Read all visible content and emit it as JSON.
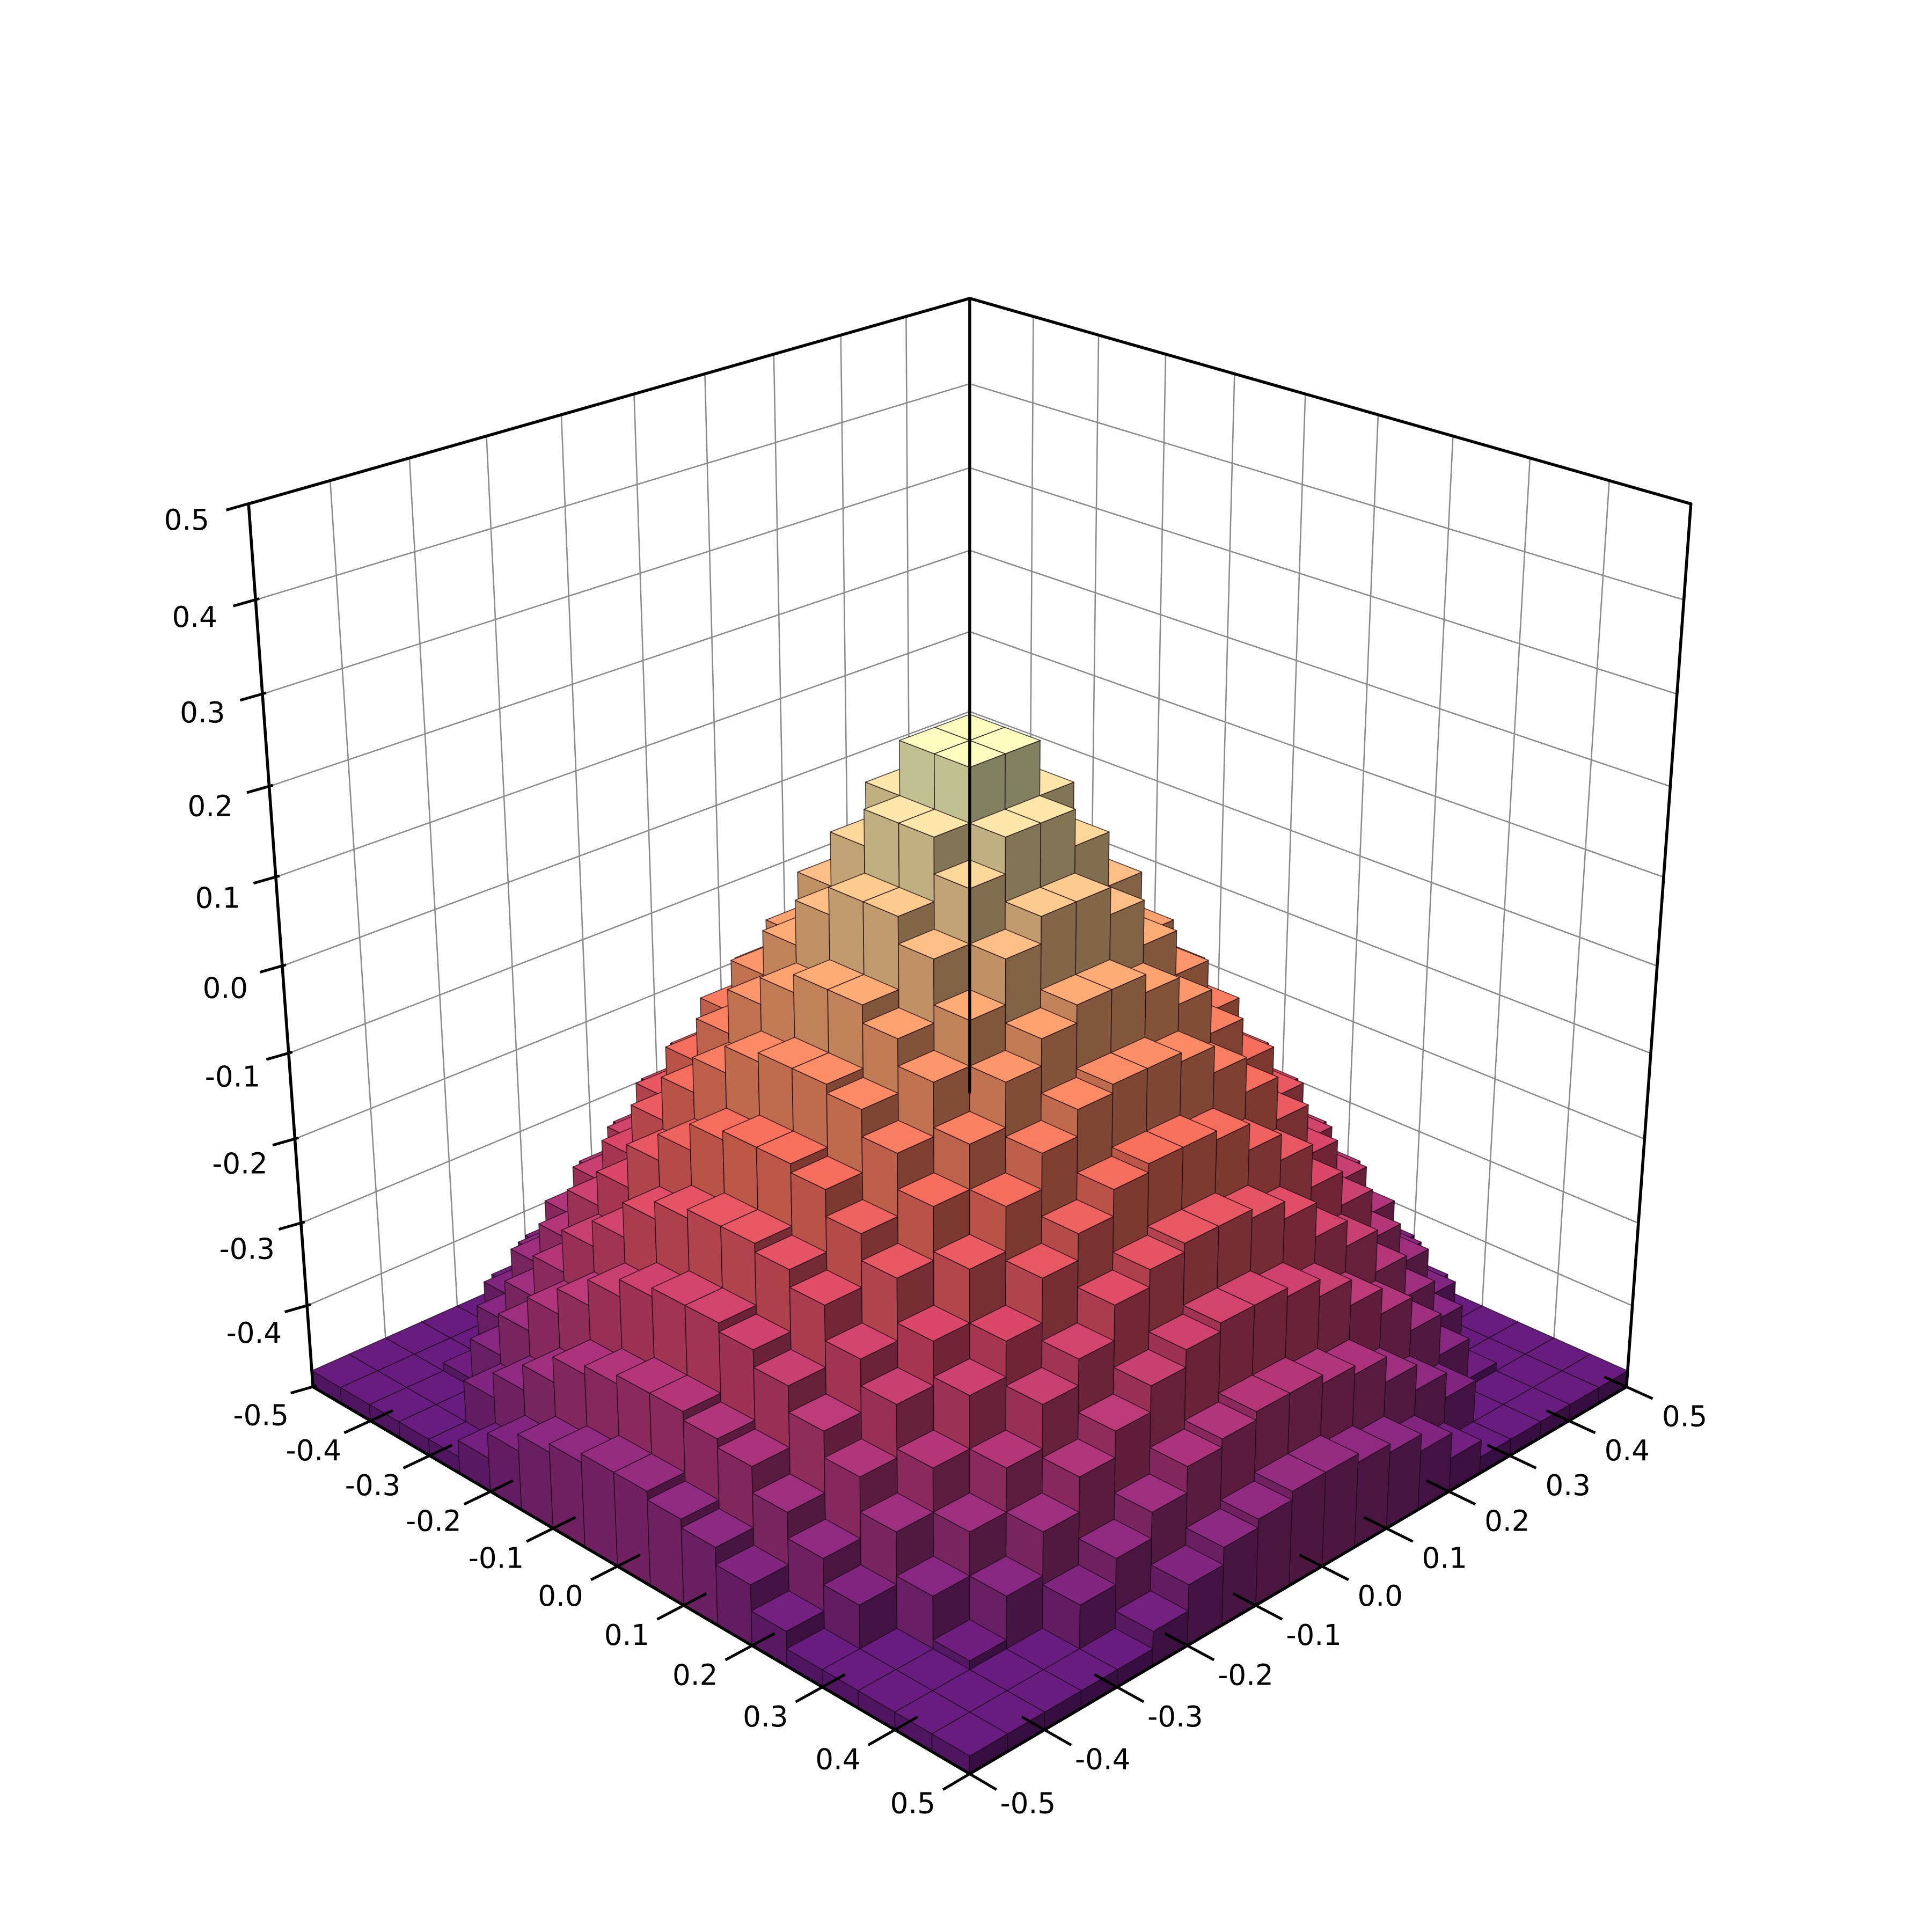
{
  "chart_data": {
    "type": "bar3d",
    "colormap": "magma",
    "grid": true,
    "pane_color": "#ffffff",
    "grid_color": "#8a8a8a",
    "edge_color": "#1a0a14",
    "xlim": [
      -0.5,
      0.5
    ],
    "ylim": [
      -0.5,
      0.5
    ],
    "zlim": [
      -0.5,
      0.5
    ],
    "base": -0.5,
    "cell_size": 0.05,
    "x_tick_labels": [
      "-0.4",
      "-0.3",
      "-0.2",
      "-0.1",
      "0.0",
      "0.1",
      "0.2",
      "0.3",
      "0.4",
      "0.5"
    ],
    "x_tick_values": [
      -0.4,
      -0.3,
      -0.2,
      -0.1,
      0.0,
      0.1,
      0.2,
      0.3,
      0.4,
      0.5
    ],
    "y_tick_labels": [
      "-0.5",
      "-0.4",
      "-0.3",
      "-0.2",
      "-0.1",
      "0.0",
      "0.1",
      "0.2",
      "0.3",
      "0.4",
      "0.5"
    ],
    "y_tick_values": [
      -0.5,
      -0.4,
      -0.3,
      -0.2,
      -0.1,
      0.0,
      0.1,
      0.2,
      0.3,
      0.4,
      0.5
    ],
    "z_tick_labels": [
      "-0.5",
      "-0.4",
      "-0.3",
      "-0.2",
      "-0.1",
      "0.0",
      "0.1",
      "0.2",
      "0.3",
      "0.4",
      "0.5"
    ],
    "z_tick_values": [
      -0.5,
      -0.4,
      -0.3,
      -0.2,
      -0.1,
      0.0,
      0.1,
      0.2,
      0.3,
      0.4,
      0.5
    ],
    "bar_heights": [
      [
        0.02,
        0.02,
        0.02,
        0.02,
        0.02,
        0.04,
        0.07,
        0.09,
        0.1,
        0.11,
        0.11,
        0.1,
        0.09,
        0.07,
        0.04,
        0.02,
        0.02,
        0.02,
        0.02,
        0.02
      ],
      [
        0.02,
        0.02,
        0.02,
        0.02,
        0.07,
        0.1,
        0.13,
        0.16,
        0.17,
        0.18,
        0.18,
        0.17,
        0.16,
        0.13,
        0.1,
        0.07,
        0.02,
        0.02,
        0.02,
        0.02
      ],
      [
        0.02,
        0.02,
        0.03,
        0.08,
        0.13,
        0.17,
        0.2,
        0.23,
        0.25,
        0.26,
        0.26,
        0.25,
        0.23,
        0.2,
        0.17,
        0.13,
        0.08,
        0.03,
        0.02,
        0.02
      ],
      [
        0.02,
        0.02,
        0.08,
        0.13,
        0.18,
        0.23,
        0.26,
        0.3,
        0.32,
        0.33,
        0.33,
        0.32,
        0.3,
        0.26,
        0.23,
        0.18,
        0.13,
        0.08,
        0.02,
        0.02
      ],
      [
        0.02,
        0.07,
        0.13,
        0.18,
        0.24,
        0.28,
        0.33,
        0.36,
        0.39,
        0.4,
        0.4,
        0.39,
        0.36,
        0.33,
        0.28,
        0.24,
        0.18,
        0.13,
        0.07,
        0.02
      ],
      [
        0.04,
        0.1,
        0.17,
        0.23,
        0.28,
        0.34,
        0.39,
        0.43,
        0.46,
        0.47,
        0.47,
        0.46,
        0.43,
        0.39,
        0.34,
        0.28,
        0.23,
        0.17,
        0.1,
        0.04
      ],
      [
        0.07,
        0.13,
        0.2,
        0.26,
        0.33,
        0.39,
        0.44,
        0.49,
        0.52,
        0.54,
        0.54,
        0.52,
        0.49,
        0.44,
        0.39,
        0.33,
        0.26,
        0.2,
        0.13,
        0.07
      ],
      [
        0.09,
        0.16,
        0.23,
        0.3,
        0.36,
        0.43,
        0.49,
        0.54,
        0.59,
        0.62,
        0.62,
        0.59,
        0.54,
        0.49,
        0.43,
        0.36,
        0.3,
        0.23,
        0.16,
        0.09
      ],
      [
        0.1,
        0.17,
        0.25,
        0.32,
        0.39,
        0.46,
        0.52,
        0.59,
        0.65,
        0.69,
        0.69,
        0.65,
        0.59,
        0.52,
        0.46,
        0.39,
        0.32,
        0.25,
        0.17,
        0.1
      ],
      [
        0.11,
        0.18,
        0.26,
        0.33,
        0.4,
        0.47,
        0.54,
        0.62,
        0.69,
        0.75,
        0.75,
        0.69,
        0.62,
        0.54,
        0.47,
        0.4,
        0.33,
        0.26,
        0.18,
        0.11
      ],
      [
        0.11,
        0.18,
        0.26,
        0.33,
        0.4,
        0.47,
        0.54,
        0.62,
        0.69,
        0.75,
        0.75,
        0.69,
        0.62,
        0.54,
        0.47,
        0.4,
        0.33,
        0.26,
        0.18,
        0.11
      ],
      [
        0.1,
        0.17,
        0.25,
        0.32,
        0.39,
        0.46,
        0.52,
        0.59,
        0.65,
        0.69,
        0.69,
        0.65,
        0.59,
        0.52,
        0.46,
        0.39,
        0.32,
        0.25,
        0.17,
        0.1
      ],
      [
        0.09,
        0.16,
        0.23,
        0.3,
        0.36,
        0.43,
        0.49,
        0.54,
        0.59,
        0.62,
        0.62,
        0.59,
        0.54,
        0.49,
        0.43,
        0.36,
        0.3,
        0.23,
        0.16,
        0.09
      ],
      [
        0.07,
        0.13,
        0.2,
        0.26,
        0.33,
        0.39,
        0.44,
        0.49,
        0.52,
        0.54,
        0.54,
        0.52,
        0.49,
        0.44,
        0.39,
        0.33,
        0.26,
        0.2,
        0.13,
        0.07
      ],
      [
        0.04,
        0.1,
        0.17,
        0.23,
        0.28,
        0.34,
        0.39,
        0.43,
        0.46,
        0.47,
        0.47,
        0.46,
        0.43,
        0.39,
        0.34,
        0.28,
        0.23,
        0.17,
        0.1,
        0.04
      ],
      [
        0.02,
        0.07,
        0.13,
        0.18,
        0.24,
        0.28,
        0.33,
        0.36,
        0.39,
        0.4,
        0.4,
        0.39,
        0.36,
        0.33,
        0.28,
        0.24,
        0.18,
        0.13,
        0.07,
        0.02
      ],
      [
        0.02,
        0.02,
        0.08,
        0.13,
        0.18,
        0.23,
        0.26,
        0.3,
        0.32,
        0.33,
        0.33,
        0.32,
        0.3,
        0.26,
        0.23,
        0.18,
        0.13,
        0.08,
        0.02,
        0.02
      ],
      [
        0.02,
        0.02,
        0.03,
        0.08,
        0.13,
        0.17,
        0.2,
        0.23,
        0.25,
        0.26,
        0.26,
        0.25,
        0.23,
        0.2,
        0.17,
        0.13,
        0.08,
        0.03,
        0.02,
        0.02
      ],
      [
        0.02,
        0.02,
        0.02,
        0.02,
        0.07,
        0.1,
        0.13,
        0.16,
        0.17,
        0.18,
        0.18,
        0.17,
        0.16,
        0.13,
        0.1,
        0.07,
        0.02,
        0.02,
        0.02,
        0.02
      ],
      [
        0.02,
        0.02,
        0.02,
        0.02,
        0.02,
        0.04,
        0.07,
        0.09,
        0.1,
        0.11,
        0.11,
        0.1,
        0.09,
        0.07,
        0.04,
        0.02,
        0.02,
        0.02,
        0.02,
        0.02
      ]
    ]
  }
}
